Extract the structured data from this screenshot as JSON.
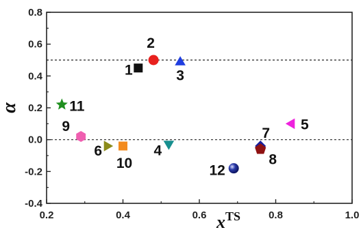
{
  "chart_data": {
    "type": "scatter",
    "title": "",
    "xlabel": "x",
    "xlabel_superscript": "TS",
    "ylabel": "α",
    "xlim": [
      0.2,
      1.0
    ],
    "ylim": [
      -0.4,
      0.8
    ],
    "x_ticks": [
      "0.2",
      "0.4",
      "0.6",
      "0.8",
      "1.0"
    ],
    "y_ticks": [
      "-0.4",
      "-0.2",
      "0.0",
      "0.2",
      "0.4",
      "0.6",
      "0.8"
    ],
    "reference_lines": [
      {
        "axis": "y",
        "value": 0.5,
        "style": "dashed"
      },
      {
        "axis": "y",
        "value": 0.0,
        "style": "dashed"
      }
    ],
    "grid": false,
    "points": [
      {
        "label": "1",
        "x": 0.44,
        "y": 0.45,
        "marker": "square",
        "color": "#111111"
      },
      {
        "label": "2",
        "x": 0.48,
        "y": 0.5,
        "marker": "circle",
        "color": "#e8211e"
      },
      {
        "label": "3",
        "x": 0.55,
        "y": 0.49,
        "marker": "triangle-up",
        "color": "#1f3ee0"
      },
      {
        "label": "4",
        "x": 0.52,
        "y": -0.03,
        "marker": "triangle-down",
        "color": "#178f8f"
      },
      {
        "label": "5",
        "x": 0.84,
        "y": 0.1,
        "marker": "triangle-left",
        "color": "#ee22dd"
      },
      {
        "label": "6",
        "x": 0.36,
        "y": -0.04,
        "marker": "triangle-right",
        "color": "#8b8b1a"
      },
      {
        "label": "7",
        "x": 0.76,
        "y": -0.04,
        "marker": "diamond",
        "color": "#1a1f9b"
      },
      {
        "label": "8",
        "x": 0.76,
        "y": -0.06,
        "marker": "pentagon",
        "color": "#8f1212"
      },
      {
        "label": "9",
        "x": 0.29,
        "y": 0.02,
        "marker": "hexagon",
        "color": "#ef5fb0"
      },
      {
        "label": "10",
        "x": 0.4,
        "y": -0.04,
        "marker": "square",
        "color": "#f38b1e"
      },
      {
        "label": "11",
        "x": 0.24,
        "y": 0.22,
        "marker": "star",
        "color": "#1f8f1f"
      },
      {
        "label": "12",
        "x": 0.69,
        "y": -0.18,
        "marker": "sphere",
        "color": "#1a2a9b"
      }
    ]
  }
}
